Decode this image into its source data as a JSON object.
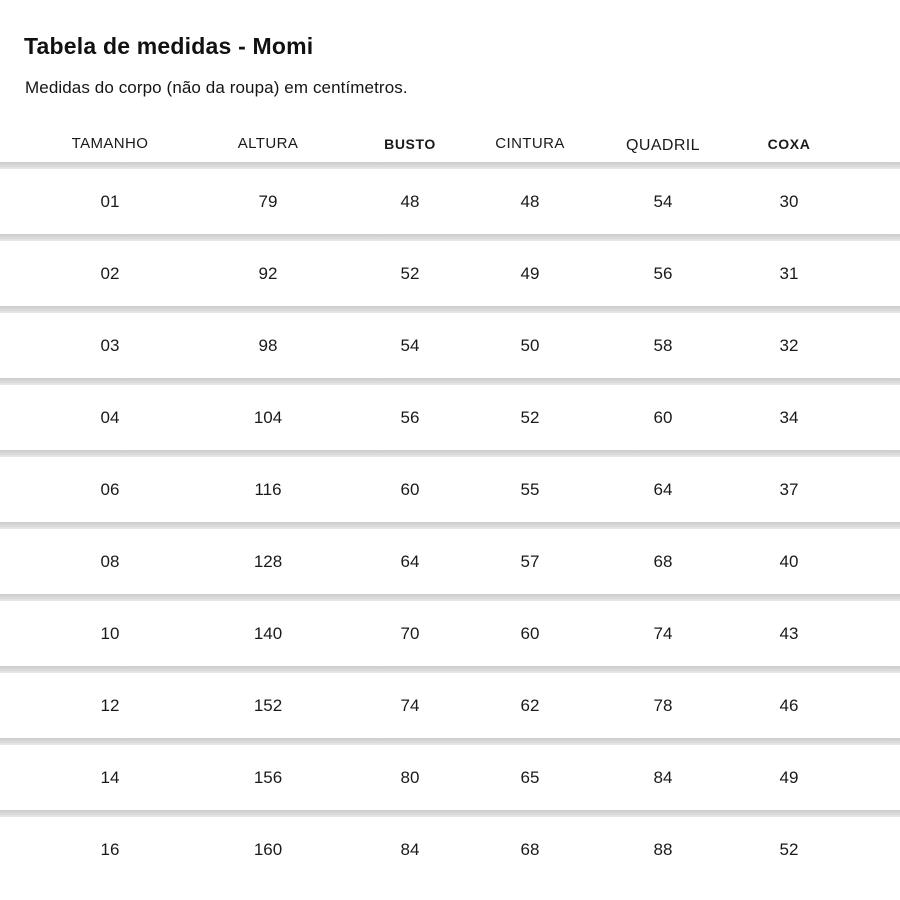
{
  "chart_data": {
    "type": "table",
    "title": "Tabela de medidas - Momi",
    "subtitle": "Medidas do corpo (não da roupa) em centímetros.",
    "columns": [
      {
        "key": "tamanho",
        "label": "TAMANHO",
        "bold": false
      },
      {
        "key": "altura",
        "label": "ALTURA",
        "bold": false
      },
      {
        "key": "busto",
        "label": "BUSTO",
        "bold": true
      },
      {
        "key": "cintura",
        "label": "CINTURA",
        "bold": false
      },
      {
        "key": "quadril",
        "label": "QUADRIL",
        "bold": false
      },
      {
        "key": "coxa",
        "label": "COXA",
        "bold": true
      }
    ],
    "rows": [
      {
        "tamanho": "01",
        "altura": "79",
        "busto": "48",
        "cintura": "48",
        "quadril": "54",
        "coxa": "30"
      },
      {
        "tamanho": "02",
        "altura": "92",
        "busto": "52",
        "cintura": "49",
        "quadril": "56",
        "coxa": "31"
      },
      {
        "tamanho": "03",
        "altura": "98",
        "busto": "54",
        "cintura": "50",
        "quadril": "58",
        "coxa": "32"
      },
      {
        "tamanho": "04",
        "altura": "104",
        "busto": "56",
        "cintura": "52",
        "quadril": "60",
        "coxa": "34"
      },
      {
        "tamanho": "06",
        "altura": "116",
        "busto": "60",
        "cintura": "55",
        "quadril": "64",
        "coxa": "37"
      },
      {
        "tamanho": "08",
        "altura": "128",
        "busto": "64",
        "cintura": "57",
        "quadril": "68",
        "coxa": "40"
      },
      {
        "tamanho": "10",
        "altura": "140",
        "busto": "70",
        "cintura": "60",
        "quadril": "74",
        "coxa": "43"
      },
      {
        "tamanho": "12",
        "altura": "152",
        "busto": "74",
        "cintura": "62",
        "quadril": "78",
        "coxa": "46"
      },
      {
        "tamanho": "14",
        "altura": "156",
        "busto": "80",
        "cintura": "65",
        "quadril": "84",
        "coxa": "49"
      },
      {
        "tamanho": "16",
        "altura": "160",
        "busto": "84",
        "cintura": "68",
        "quadril": "88",
        "coxa": "52"
      }
    ],
    "colors": {
      "background": "#ffffff",
      "text": "#1a1a1a",
      "divider": "#d9d9d9"
    }
  }
}
